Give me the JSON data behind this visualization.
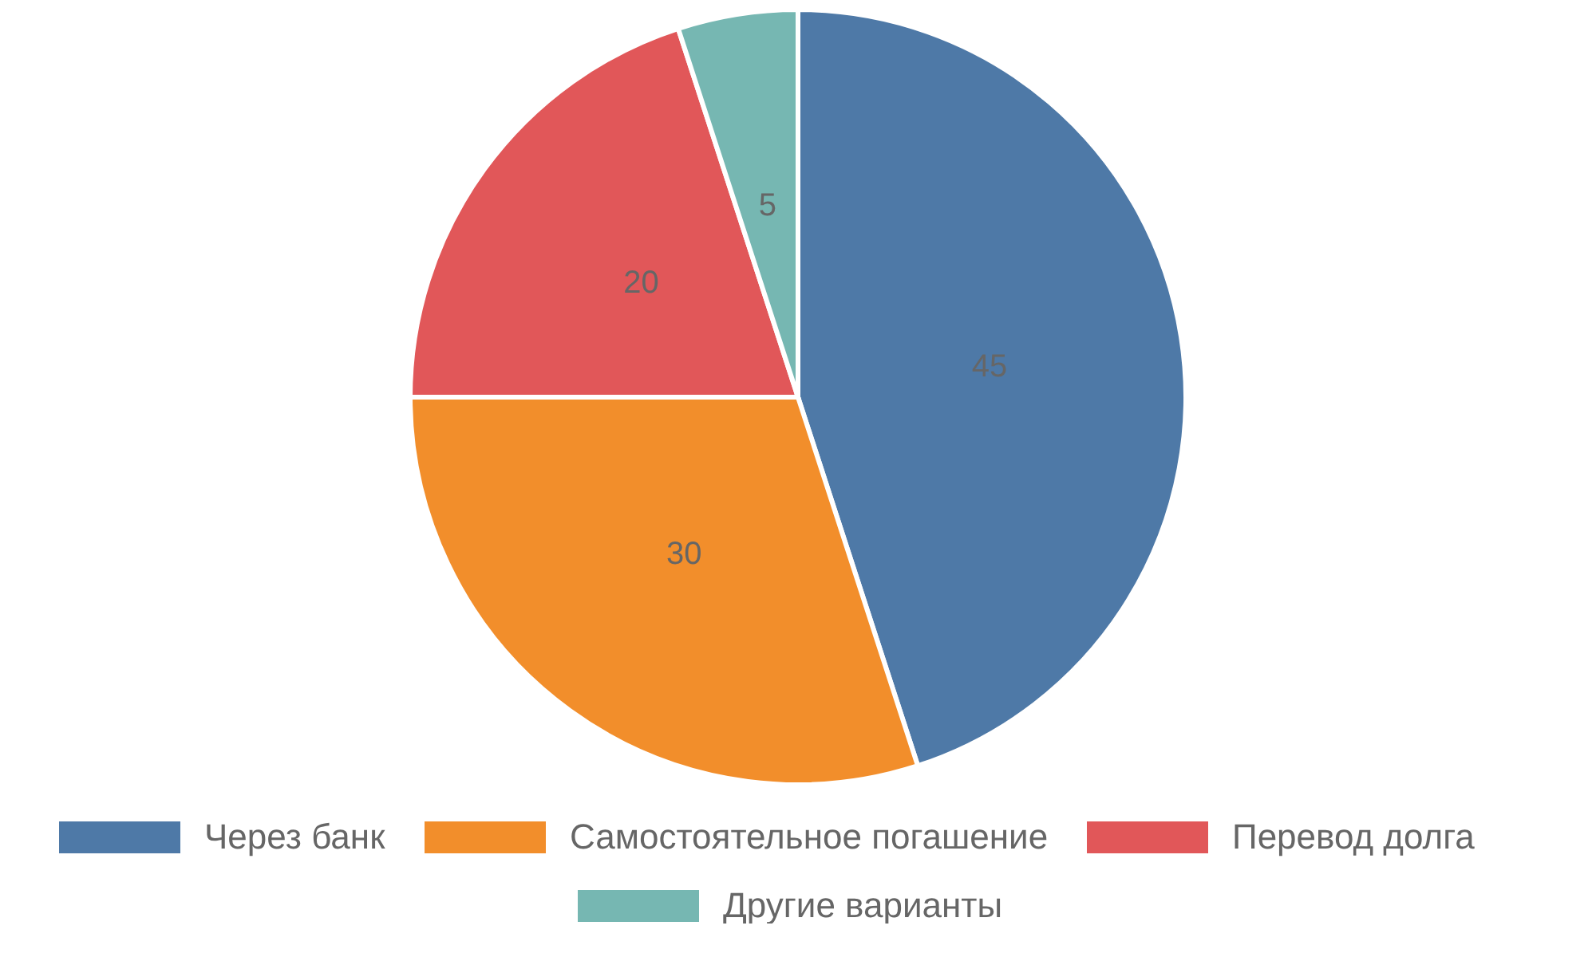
{
  "chart_data": {
    "type": "pie",
    "categories": [
      "Через банк",
      "Самостоятельное погашение",
      "Перевод долга",
      "Другие варианты"
    ],
    "values": [
      45,
      30,
      20,
      5
    ],
    "colors": [
      "#4e79a7",
      "#f28e2b",
      "#e15759",
      "#76b7b2"
    ],
    "data_labels": true,
    "legend": "bottom"
  }
}
